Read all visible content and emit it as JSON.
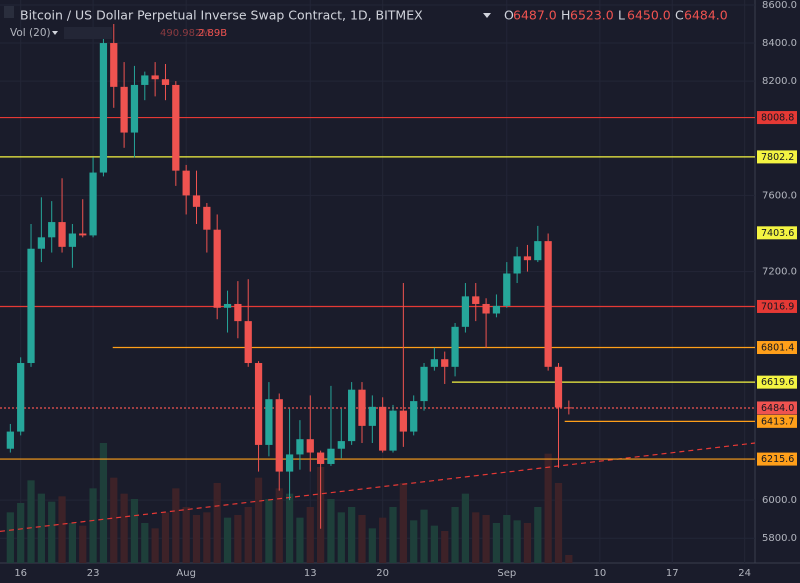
{
  "header": {
    "title": "Bitcoin / US Dollar Perpetual Inverse Swap Contract, 1D, BITMEX",
    "ohlc": [
      {
        "key": "O",
        "value": "6487.0"
      },
      {
        "key": "H",
        "value": "6523.0"
      },
      {
        "key": "L",
        "value": "6450.0"
      },
      {
        "key": "C",
        "value": "6484.0"
      }
    ],
    "volume_label": "Vol (20)",
    "volume_values": [
      "490.982M",
      "2.89B"
    ]
  },
  "chart_data": {
    "type": "candlestick",
    "x": [
      0,
      1,
      2,
      3,
      4,
      5,
      6,
      7,
      8,
      9,
      10,
      11,
      12,
      13,
      14,
      15,
      16,
      17,
      18,
      19,
      20,
      21,
      22,
      23,
      24,
      25,
      26,
      27,
      28,
      29,
      30,
      31,
      32,
      33,
      34,
      35,
      36,
      37,
      38,
      39,
      40,
      41,
      42,
      43,
      44,
      45,
      46,
      47,
      48,
      49,
      50,
      51,
      52,
      53,
      54
    ],
    "open": [
      6270,
      6360,
      6720,
      7320,
      7380,
      7460,
      7330,
      7400,
      7390,
      7720,
      8400,
      8170,
      7930,
      8180,
      8230,
      8210,
      8180,
      7730,
      7600,
      7540,
      7420,
      7010,
      7030,
      6940,
      6720,
      6290,
      6530,
      6150,
      6240,
      6320,
      6250,
      6190,
      6270,
      6310,
      6580,
      6390,
      6490,
      6260,
      6470,
      6360,
      6520,
      6700,
      6740,
      6700,
      6910,
      7070,
      7030,
      6980,
      7020,
      7190,
      7280,
      7260,
      7360,
      6700,
      6487
    ],
    "high": [
      6400,
      6750,
      7450,
      7590,
      7570,
      7690,
      7450,
      7580,
      7800,
      8480,
      8500,
      8300,
      8280,
      8250,
      8300,
      8290,
      8200,
      7760,
      7730,
      7560,
      7500,
      7100,
      7150,
      7160,
      6730,
      6620,
      6560,
      6480,
      6420,
      6550,
      6260,
      6600,
      6480,
      6620,
      6620,
      6550,
      6540,
      6500,
      7140,
      6550,
      6720,
      6800,
      6780,
      6930,
      7140,
      7140,
      7060,
      7080,
      7250,
      7330,
      7340,
      7440,
      7400,
      6720,
      6523
    ],
    "low": [
      6250,
      6340,
      6700,
      7250,
      7300,
      7300,
      7220,
      7380,
      7380,
      7700,
      8060,
      7850,
      7800,
      8100,
      8120,
      8100,
      7650,
      7500,
      7450,
      7300,
      6950,
      6880,
      6850,
      6700,
      6150,
      6230,
      6050,
      6000,
      6160,
      6150,
      5850,
      6180,
      6220,
      6290,
      6300,
      6300,
      6250,
      6250,
      6280,
      6340,
      6470,
      6680,
      6610,
      6650,
      6880,
      6940,
      6800,
      6960,
      7010,
      7140,
      7200,
      7250,
      6680,
      6170,
      6450
    ],
    "close": [
      6360,
      6720,
      7320,
      7380,
      7460,
      7330,
      7400,
      7390,
      7720,
      8400,
      8170,
      7930,
      8180,
      8230,
      8210,
      8180,
      7730,
      7600,
      7540,
      7420,
      7010,
      7030,
      6940,
      6720,
      6290,
      6530,
      6150,
      6240,
      6320,
      6250,
      6190,
      6270,
      6310,
      6580,
      6390,
      6490,
      6260,
      6470,
      6360,
      6520,
      6700,
      6740,
      6700,
      6910,
      7070,
      7030,
      6980,
      7020,
      7190,
      7280,
      7260,
      7360,
      6700,
      6487,
      6484
    ],
    "volume": [
      380,
      450,
      620,
      520,
      460,
      500,
      300,
      280,
      560,
      900,
      640,
      520,
      480,
      300,
      260,
      380,
      560,
      420,
      360,
      380,
      600,
      340,
      360,
      420,
      640,
      480,
      560,
      520,
      340,
      420,
      720,
      480,
      380,
      420,
      360,
      260,
      340,
      420,
      600,
      320,
      400,
      280,
      240,
      420,
      520,
      380,
      360,
      300,
      360,
      320,
      300,
      420,
      820,
      600,
      60
    ],
    "up_color": "#26a69a",
    "down_color": "#ef5350",
    "up_volume_color": "#1e3f3a",
    "down_volume_color": "#3d2228",
    "xlim": [
      -1,
      72
    ],
    "xticks": [
      {
        "value": 1,
        "label": "16"
      },
      {
        "value": 8,
        "label": "23"
      },
      {
        "value": 17,
        "label": "Aug"
      },
      {
        "value": 29,
        "label": "13"
      },
      {
        "value": 36,
        "label": "20"
      },
      {
        "value": 48,
        "label": "Sep"
      },
      {
        "value": 57,
        "label": "10"
      },
      {
        "value": 64,
        "label": "17"
      },
      {
        "value": 71,
        "label": "24"
      }
    ],
    "ylim": [
      5670,
      8626
    ],
    "yticks": [
      {
        "value": 8600,
        "label": "8600.0"
      },
      {
        "value": 8400,
        "label": "8400.0"
      },
      {
        "value": 8200,
        "label": "8200.0"
      },
      {
        "value": 7600,
        "label": "7600.0"
      },
      {
        "value": 7200,
        "label": "7200.0"
      },
      {
        "value": 6000,
        "label": "6000.0"
      },
      {
        "value": 5800,
        "label": "5800.0"
      }
    ],
    "grid": true,
    "levels": [
      {
        "value": 8008.8,
        "label": "8008.8",
        "color": "#e53935",
        "from": -1
      },
      {
        "value": 7802.2,
        "label": "7802.2",
        "color": "#f4f442",
        "from": -1
      },
      {
        "value": 7403.6,
        "label": "7403.6",
        "color": "#f4f442",
        "from": null
      },
      {
        "value": 7016.9,
        "label": "7016.9",
        "color": "#e53935",
        "from": -1
      },
      {
        "value": 6801.4,
        "label": "6801.4",
        "color": "#ff9f1a",
        "from": 9.9
      },
      {
        "value": 6619.6,
        "label": "6619.6",
        "color": "#f4f442",
        "from": 42.7
      },
      {
        "value": 6484,
        "label": "6484.0",
        "color": "#ef5350",
        "from": -1,
        "dashed": true
      },
      {
        "value": 6413.7,
        "label": "6413.7",
        "color": "#ff9f1a",
        "from": 53.6
      },
      {
        "value": 6215.6,
        "label": "6215.6",
        "color": "#ff9f1a",
        "from": -1
      }
    ],
    "trendline": {
      "x": [
        -1,
        72
      ],
      "y": [
        5836,
        6300
      ],
      "color": "#e53935"
    }
  }
}
